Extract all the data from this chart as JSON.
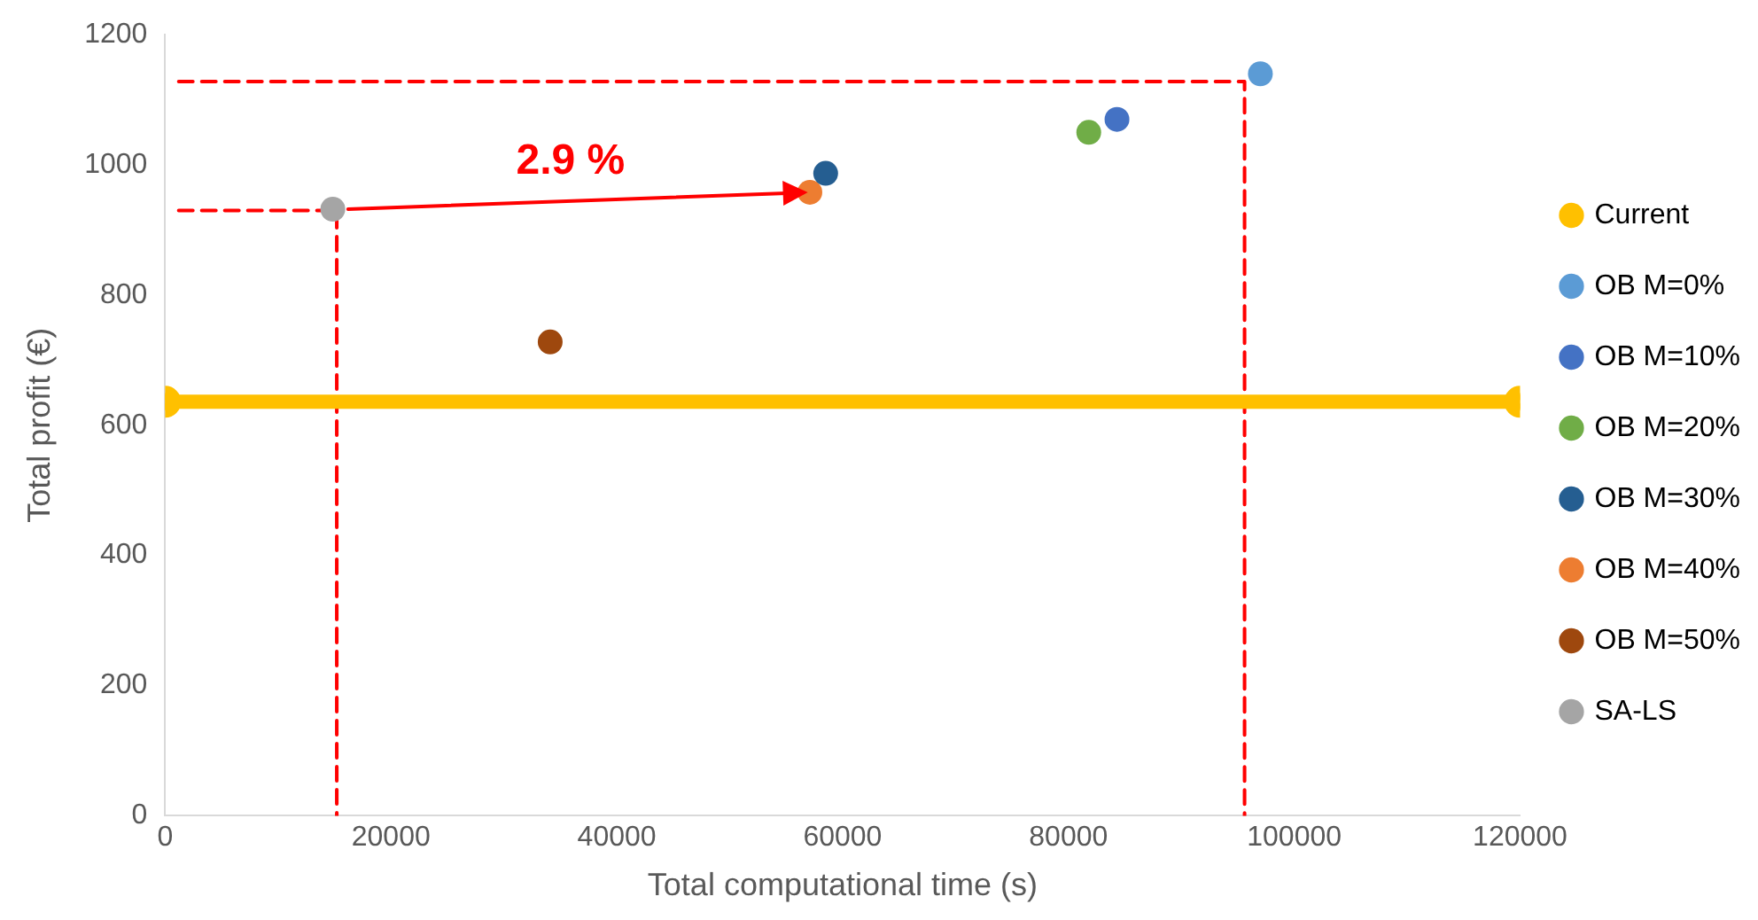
{
  "chart_data": {
    "type": "scatter",
    "xlabel": "Total computational time (s)",
    "ylabel": "Total profit (€)",
    "xlim": [
      0,
      120000
    ],
    "xticks": [
      0,
      20000,
      40000,
      60000,
      80000,
      100000,
      120000
    ],
    "ylim": [
      0,
      1200
    ],
    "yticks": [
      0,
      200,
      400,
      600,
      800,
      1000,
      1200
    ],
    "grid": false,
    "legend": "right",
    "marker": "circle",
    "annotations": [
      "2.9 %"
    ],
    "series": [
      {
        "name": "Current",
        "type": "line",
        "color": "#ffc000",
        "x": [
          0,
          120000
        ],
        "values": [
          636,
          636
        ]
      },
      {
        "name": "OB M=0%",
        "color": "#5b9bd5",
        "x": [
          97000
        ],
        "values": [
          1140
        ]
      },
      {
        "name": "OB M=10%",
        "color": "#4472c4",
        "x": [
          84300
        ],
        "values": [
          1070
        ]
      },
      {
        "name": "OB M=20%",
        "color": "#70ad47",
        "x": [
          81800
        ],
        "values": [
          1050
        ]
      },
      {
        "name": "OB M=30%",
        "color": "#255e91",
        "x": [
          58500
        ],
        "values": [
          987
        ]
      },
      {
        "name": "OB M=40%",
        "color": "#ed7d31",
        "x": [
          57100
        ],
        "values": [
          958
        ]
      },
      {
        "name": "OB M=50%",
        "color": "#9e480e",
        "x": [
          34100
        ],
        "values": [
          728
        ]
      },
      {
        "name": "SA-LS",
        "color": "#a5a5a5",
        "x": [
          14850
        ],
        "values": [
          932
        ]
      },
      {
        "type": "line",
        "color": "#ff0000",
        "line_style": "dashed",
        "marker": "none",
        "x": [
          1200,
          15200,
          15200
        ],
        "values": [
          930,
          930,
          0
        ]
      },
      {
        "type": "line",
        "color": "#ff0000",
        "line_style": "dashed",
        "marker": "none",
        "x": [
          1200,
          95600,
          95600
        ],
        "values": [
          1128,
          1128,
          0
        ]
      },
      {
        "type": "line",
        "color": "#ff0000",
        "marker": "triangle",
        "x": [
          16200,
          55600
        ],
        "values": [
          932,
          957
        ]
      }
    ]
  }
}
